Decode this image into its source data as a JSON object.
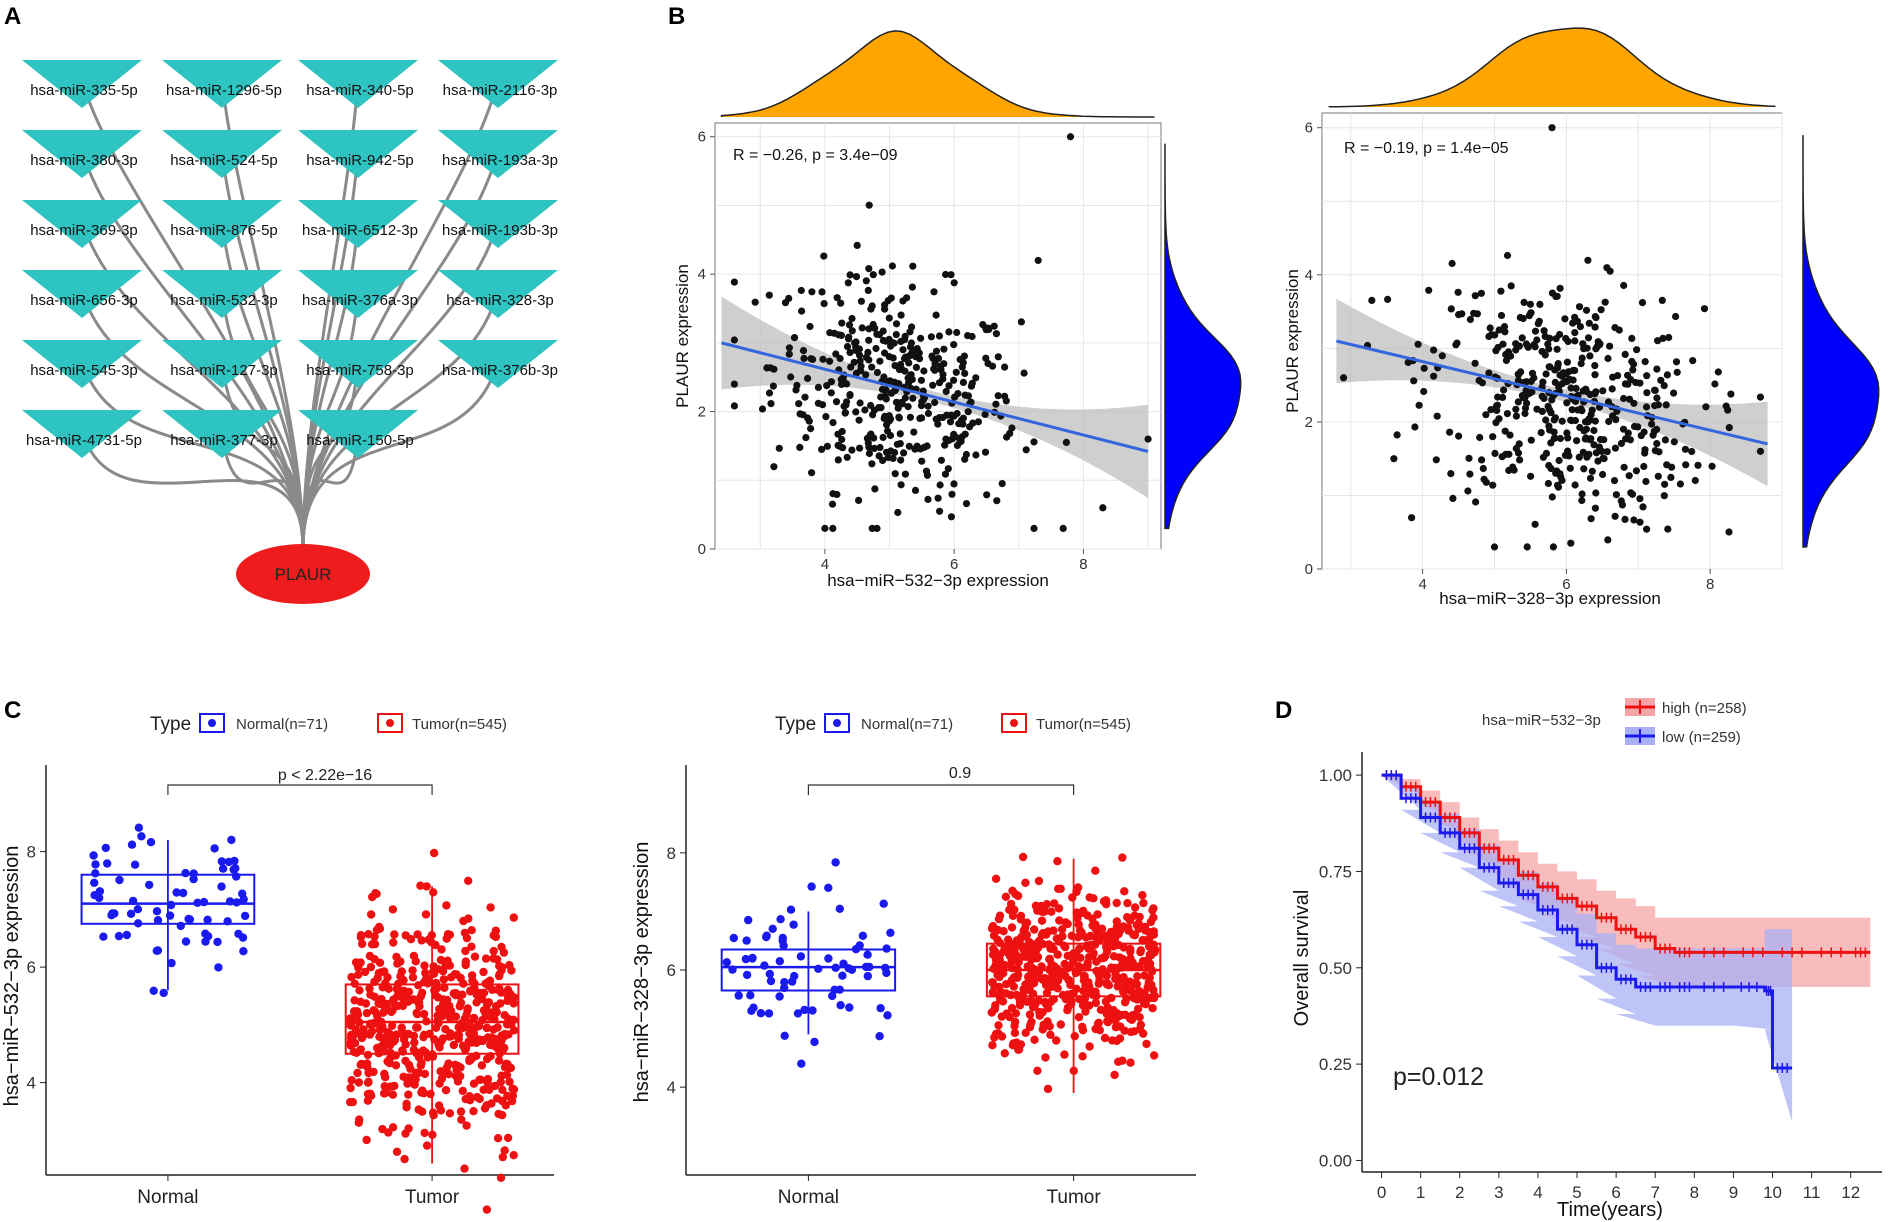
{
  "panel_labels": [
    "A",
    "B",
    "C",
    "D"
  ],
  "colors": {
    "mirna_node": "#2ec4c1",
    "target_node": "#ee1c1c",
    "edge": "#8a8a8a",
    "density_top": "#ffa500",
    "density_right": "#0000ff",
    "regression_line": "#3366dd",
    "normal": "#1a1aee",
    "tumor": "#ee1111",
    "ribbon_high": "#f5a5a5",
    "ribbon_low": "#aab0f5"
  },
  "network": {
    "target": "PLAUR",
    "mirnas": [
      "hsa-miR-335-5p",
      "hsa-miR-1296-5p",
      "hsa-miR-340-5p",
      "hsa-miR-2116-3p",
      "hsa-miR-380-3p",
      "hsa-miR-524-5p",
      "hsa-miR-942-5p",
      "hsa-miR-193a-3p",
      "hsa-miR-369-3p",
      "hsa-miR-876-5p",
      "hsa-miR-6512-3p",
      "hsa-miR-193b-3p",
      "hsa-miR-656-3p",
      "hsa-miR-532-3p",
      "hsa-miR-376a-3p",
      "hsa-miR-328-3p",
      "hsa-miR-545-3p",
      "hsa-miR-127-3p",
      "hsa-miR-758-3p",
      "hsa-miR-376b-3p",
      "hsa-miR-4731-5p",
      "hsa-miR-377-3p",
      "hsa-miR-150-5p"
    ]
  },
  "chart_data": [
    {
      "id": "B1",
      "type": "scatter",
      "stat_label": "R = −0.26, p = 3.4e−09",
      "xlabel": "hsa−miR−532−3p expression",
      "ylabel": "PLAUR expression",
      "xlim": [
        2.3,
        9.2
      ],
      "ylim": [
        0,
        6.2
      ],
      "xticks": [
        4,
        6,
        8
      ],
      "yticks": [
        0,
        2,
        4,
        6
      ],
      "fit": {
        "x0": 2.4,
        "y0": 3.0,
        "x1": 9.0,
        "y1": 1.42
      },
      "n_points": 420,
      "x_center": 5.1,
      "y_center": 2.3,
      "highlight_points": [
        [
          7.8,
          6.0
        ],
        [
          2.6,
          2.4
        ],
        [
          9.0,
          1.6
        ],
        [
          8.3,
          0.6
        ],
        [
          4.0,
          0.3
        ],
        [
          7.3,
          4.2
        ]
      ]
    },
    {
      "id": "B2",
      "type": "scatter",
      "stat_label": "R = −0.19, p = 1.4e−05",
      "xlabel": "hsa−miR−328−3p expression",
      "ylabel": "PLAUR expression",
      "xlim": [
        2.6,
        9.0
      ],
      "ylim": [
        0,
        6.2
      ],
      "xticks": [
        4,
        6,
        8
      ],
      "yticks": [
        0,
        2,
        4,
        6
      ],
      "fit": {
        "x0": 2.8,
        "y0": 3.1,
        "x1": 8.8,
        "y1": 1.7
      },
      "n_points": 450,
      "x_center": 6.0,
      "y_center": 2.3,
      "highlight_points": [
        [
          5.8,
          6.0
        ],
        [
          2.9,
          2.6
        ],
        [
          8.7,
          1.6
        ],
        [
          5.0,
          0.3
        ],
        [
          3.6,
          1.5
        ]
      ]
    },
    {
      "id": "C1",
      "type": "box",
      "legend_title": "Type",
      "legend": [
        "Normal(n=71)",
        "Tumor(n=545)"
      ],
      "categories": [
        "Normal",
        "Tumor"
      ],
      "ylabel": "hsa−miR−532−3p expression",
      "ylim": [
        2.4,
        9.5
      ],
      "yticks": [
        4,
        6,
        8
      ],
      "comparison": "p < 2.22e−16",
      "series": [
        {
          "name": "Normal",
          "q1": 6.75,
          "median": 7.1,
          "q3": 7.6,
          "whisker_low": 5.6,
          "whisker_high": 8.2,
          "n": 71
        },
        {
          "name": "Tumor",
          "q1": 4.5,
          "median": 5.05,
          "q3": 5.7,
          "whisker_low": 2.6,
          "whisker_high": 7.4,
          "n": 545
        }
      ]
    },
    {
      "id": "C2",
      "type": "box",
      "legend_title": "Type",
      "legend": [
        "Normal(n=71)",
        "Tumor(n=545)"
      ],
      "categories": [
        "Normal",
        "Tumor"
      ],
      "ylabel": "hsa−miR−328−3p expression",
      "ylim": [
        2.5,
        9.5
      ],
      "yticks": [
        4,
        6,
        8
      ],
      "comparison": "0.9",
      "series": [
        {
          "name": "Normal",
          "q1": 5.65,
          "median": 6.05,
          "q3": 6.35,
          "whisker_low": 4.9,
          "whisker_high": 7.0,
          "n": 71
        },
        {
          "name": "Tumor",
          "q1": 5.55,
          "median": 6.0,
          "q3": 6.45,
          "whisker_low": 3.9,
          "whisker_high": 7.9,
          "n": 545
        }
      ]
    },
    {
      "id": "D",
      "type": "line",
      "title": "hsa−miR−532−3p",
      "xlabel": "Time(years)",
      "ylabel": "Overall survival",
      "xlim": [
        -0.5,
        12.8
      ],
      "ylim": [
        -0.03,
        1.06
      ],
      "xticks": [
        0,
        1,
        2,
        3,
        4,
        5,
        6,
        7,
        8,
        9,
        10,
        11,
        12
      ],
      "yticks": [
        "0.00",
        "0.25",
        "0.50",
        "0.75",
        "1.00"
      ],
      "pvalue": "p=0.012",
      "series": [
        {
          "name": "high (n=258)",
          "x": [
            0,
            0.5,
            1,
            1.5,
            2,
            2.5,
            3,
            3.5,
            4,
            4.5,
            5,
            5.5,
            6,
            6.5,
            7,
            7.5,
            8,
            9,
            10,
            11,
            12,
            12.5
          ],
          "y": [
            1.0,
            0.97,
            0.93,
            0.89,
            0.85,
            0.81,
            0.78,
            0.74,
            0.71,
            0.68,
            0.66,
            0.63,
            0.6,
            0.58,
            0.55,
            0.54,
            0.54,
            0.54,
            0.54,
            0.54,
            0.54,
            0.54
          ],
          "lower": [
            1.0,
            0.95,
            0.9,
            0.85,
            0.81,
            0.76,
            0.72,
            0.68,
            0.64,
            0.61,
            0.58,
            0.55,
            0.51,
            0.48,
            0.45,
            0.45,
            0.45,
            0.45,
            0.45,
            0.45,
            0.45,
            0.45
          ],
          "upper": [
            1.0,
            0.99,
            0.96,
            0.93,
            0.89,
            0.86,
            0.83,
            0.8,
            0.77,
            0.75,
            0.73,
            0.7,
            0.68,
            0.66,
            0.63,
            0.63,
            0.63,
            0.63,
            0.63,
            0.63,
            0.63,
            0.63
          ]
        },
        {
          "name": "low  (n=259)",
          "x": [
            0,
            0.5,
            1,
            1.5,
            2,
            2.5,
            3,
            3.5,
            4,
            4.5,
            5,
            5.5,
            6,
            6.5,
            7,
            7.5,
            8,
            9,
            9.8,
            10,
            10.5
          ],
          "y": [
            1.0,
            0.94,
            0.89,
            0.85,
            0.81,
            0.76,
            0.72,
            0.69,
            0.65,
            0.6,
            0.56,
            0.5,
            0.47,
            0.45,
            0.45,
            0.45,
            0.45,
            0.45,
            0.44,
            0.24,
            0.24
          ],
          "lower": [
            1.0,
            0.91,
            0.85,
            0.8,
            0.76,
            0.7,
            0.66,
            0.62,
            0.58,
            0.53,
            0.48,
            0.42,
            0.38,
            0.35,
            0.35,
            0.35,
            0.35,
            0.35,
            0.34,
            0.1,
            0.1
          ],
          "upper": [
            1.0,
            0.97,
            0.93,
            0.9,
            0.86,
            0.82,
            0.78,
            0.75,
            0.72,
            0.68,
            0.64,
            0.59,
            0.56,
            0.55,
            0.55,
            0.55,
            0.55,
            0.55,
            0.6,
            0.6,
            0.6
          ]
        }
      ]
    }
  ]
}
